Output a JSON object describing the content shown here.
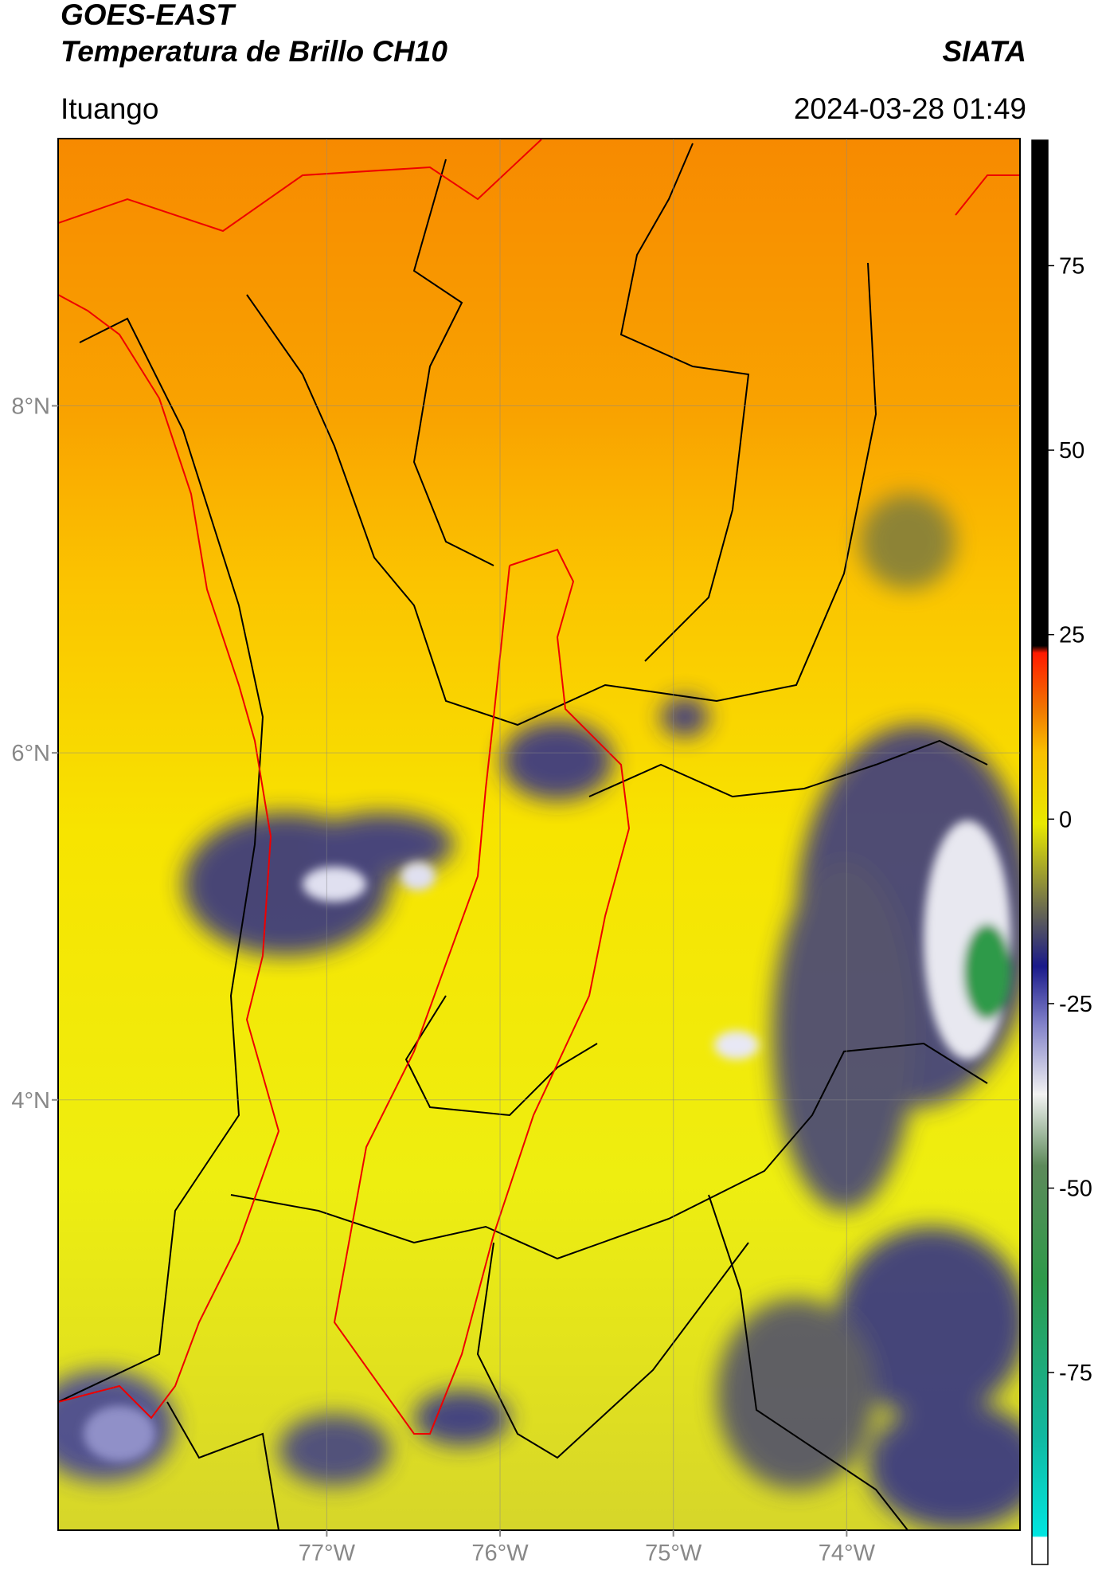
{
  "header": {
    "title_line1": "GOES-EAST",
    "title_line2": "Temperatura de Brillo CH10",
    "source": "SIATA",
    "location": "Ituango",
    "datetime": "2024-03-28 01:49"
  },
  "map": {
    "xlim": [
      -78.55,
      -73.0
    ],
    "ylim": [
      1.52,
      9.54
    ],
    "xticks": [
      {
        "value": -77,
        "label": "77°W"
      },
      {
        "value": -76,
        "label": "76°W"
      },
      {
        "value": -75,
        "label": "75°W"
      },
      {
        "value": -74,
        "label": "74°W"
      }
    ],
    "yticks": [
      {
        "value": 8,
        "label": "8°N"
      },
      {
        "value": 6,
        "label": "6°N"
      },
      {
        "value": 4,
        "label": "4°N"
      }
    ],
    "grid": true
  },
  "colorbar": {
    "lim": [
      -101,
      92
    ],
    "ticks": [
      -75,
      -50,
      -25,
      0,
      25,
      50,
      75
    ]
  }
}
